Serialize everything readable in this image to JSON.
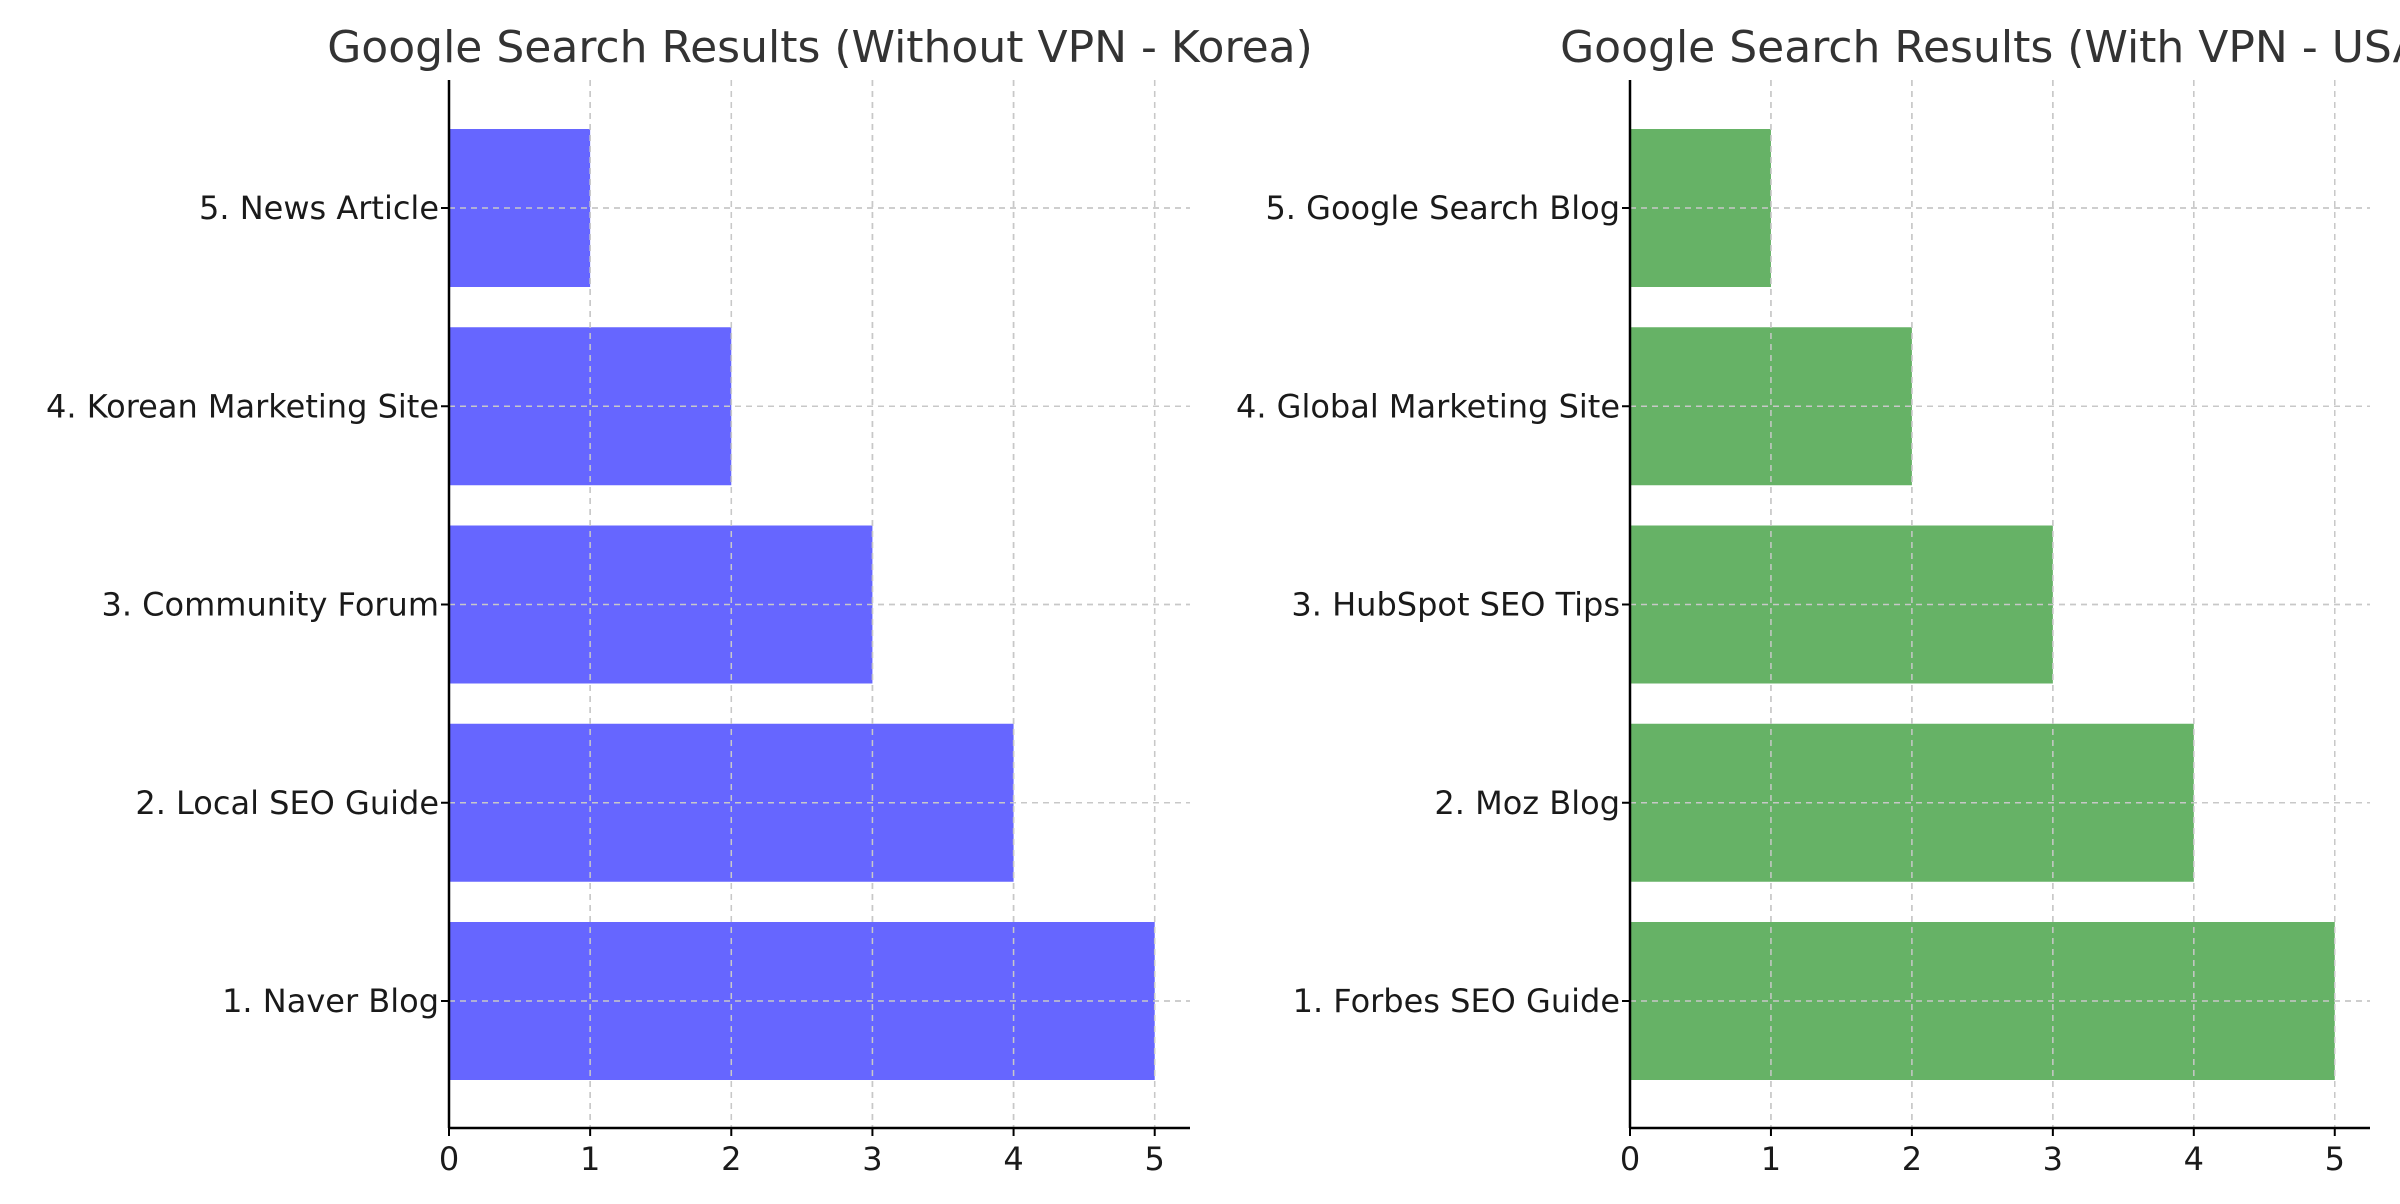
{
  "chart_data": [
    {
      "type": "bar",
      "orientation": "horizontal",
      "title": "Google Search Results (Without VPN - Korea)",
      "categories": [
        "1. Naver Blog",
        "2. Local SEO Guide",
        "3. Community Forum",
        "4. Korean Marketing Site",
        "5. News Article"
      ],
      "values": [
        5,
        4,
        3,
        2,
        1
      ],
      "xlim": [
        0,
        5.25
      ],
      "xticks": [
        0,
        1,
        2,
        3,
        4,
        5
      ],
      "grid": true,
      "color": "#6666ff"
    },
    {
      "type": "bar",
      "orientation": "horizontal",
      "title": "Google Search Results (With VPN - USA)",
      "categories": [
        "1. Forbes SEO Guide",
        "2. Moz Blog",
        "3. HubSpot SEO Tips",
        "4. Global Marketing Site",
        "5. Google Search Blog"
      ],
      "values": [
        5,
        4,
        3,
        2,
        1
      ],
      "xlim": [
        0,
        5.25
      ],
      "xticks": [
        0,
        1,
        2,
        3,
        4,
        5
      ],
      "grid": true,
      "color": "#66b266"
    }
  ]
}
